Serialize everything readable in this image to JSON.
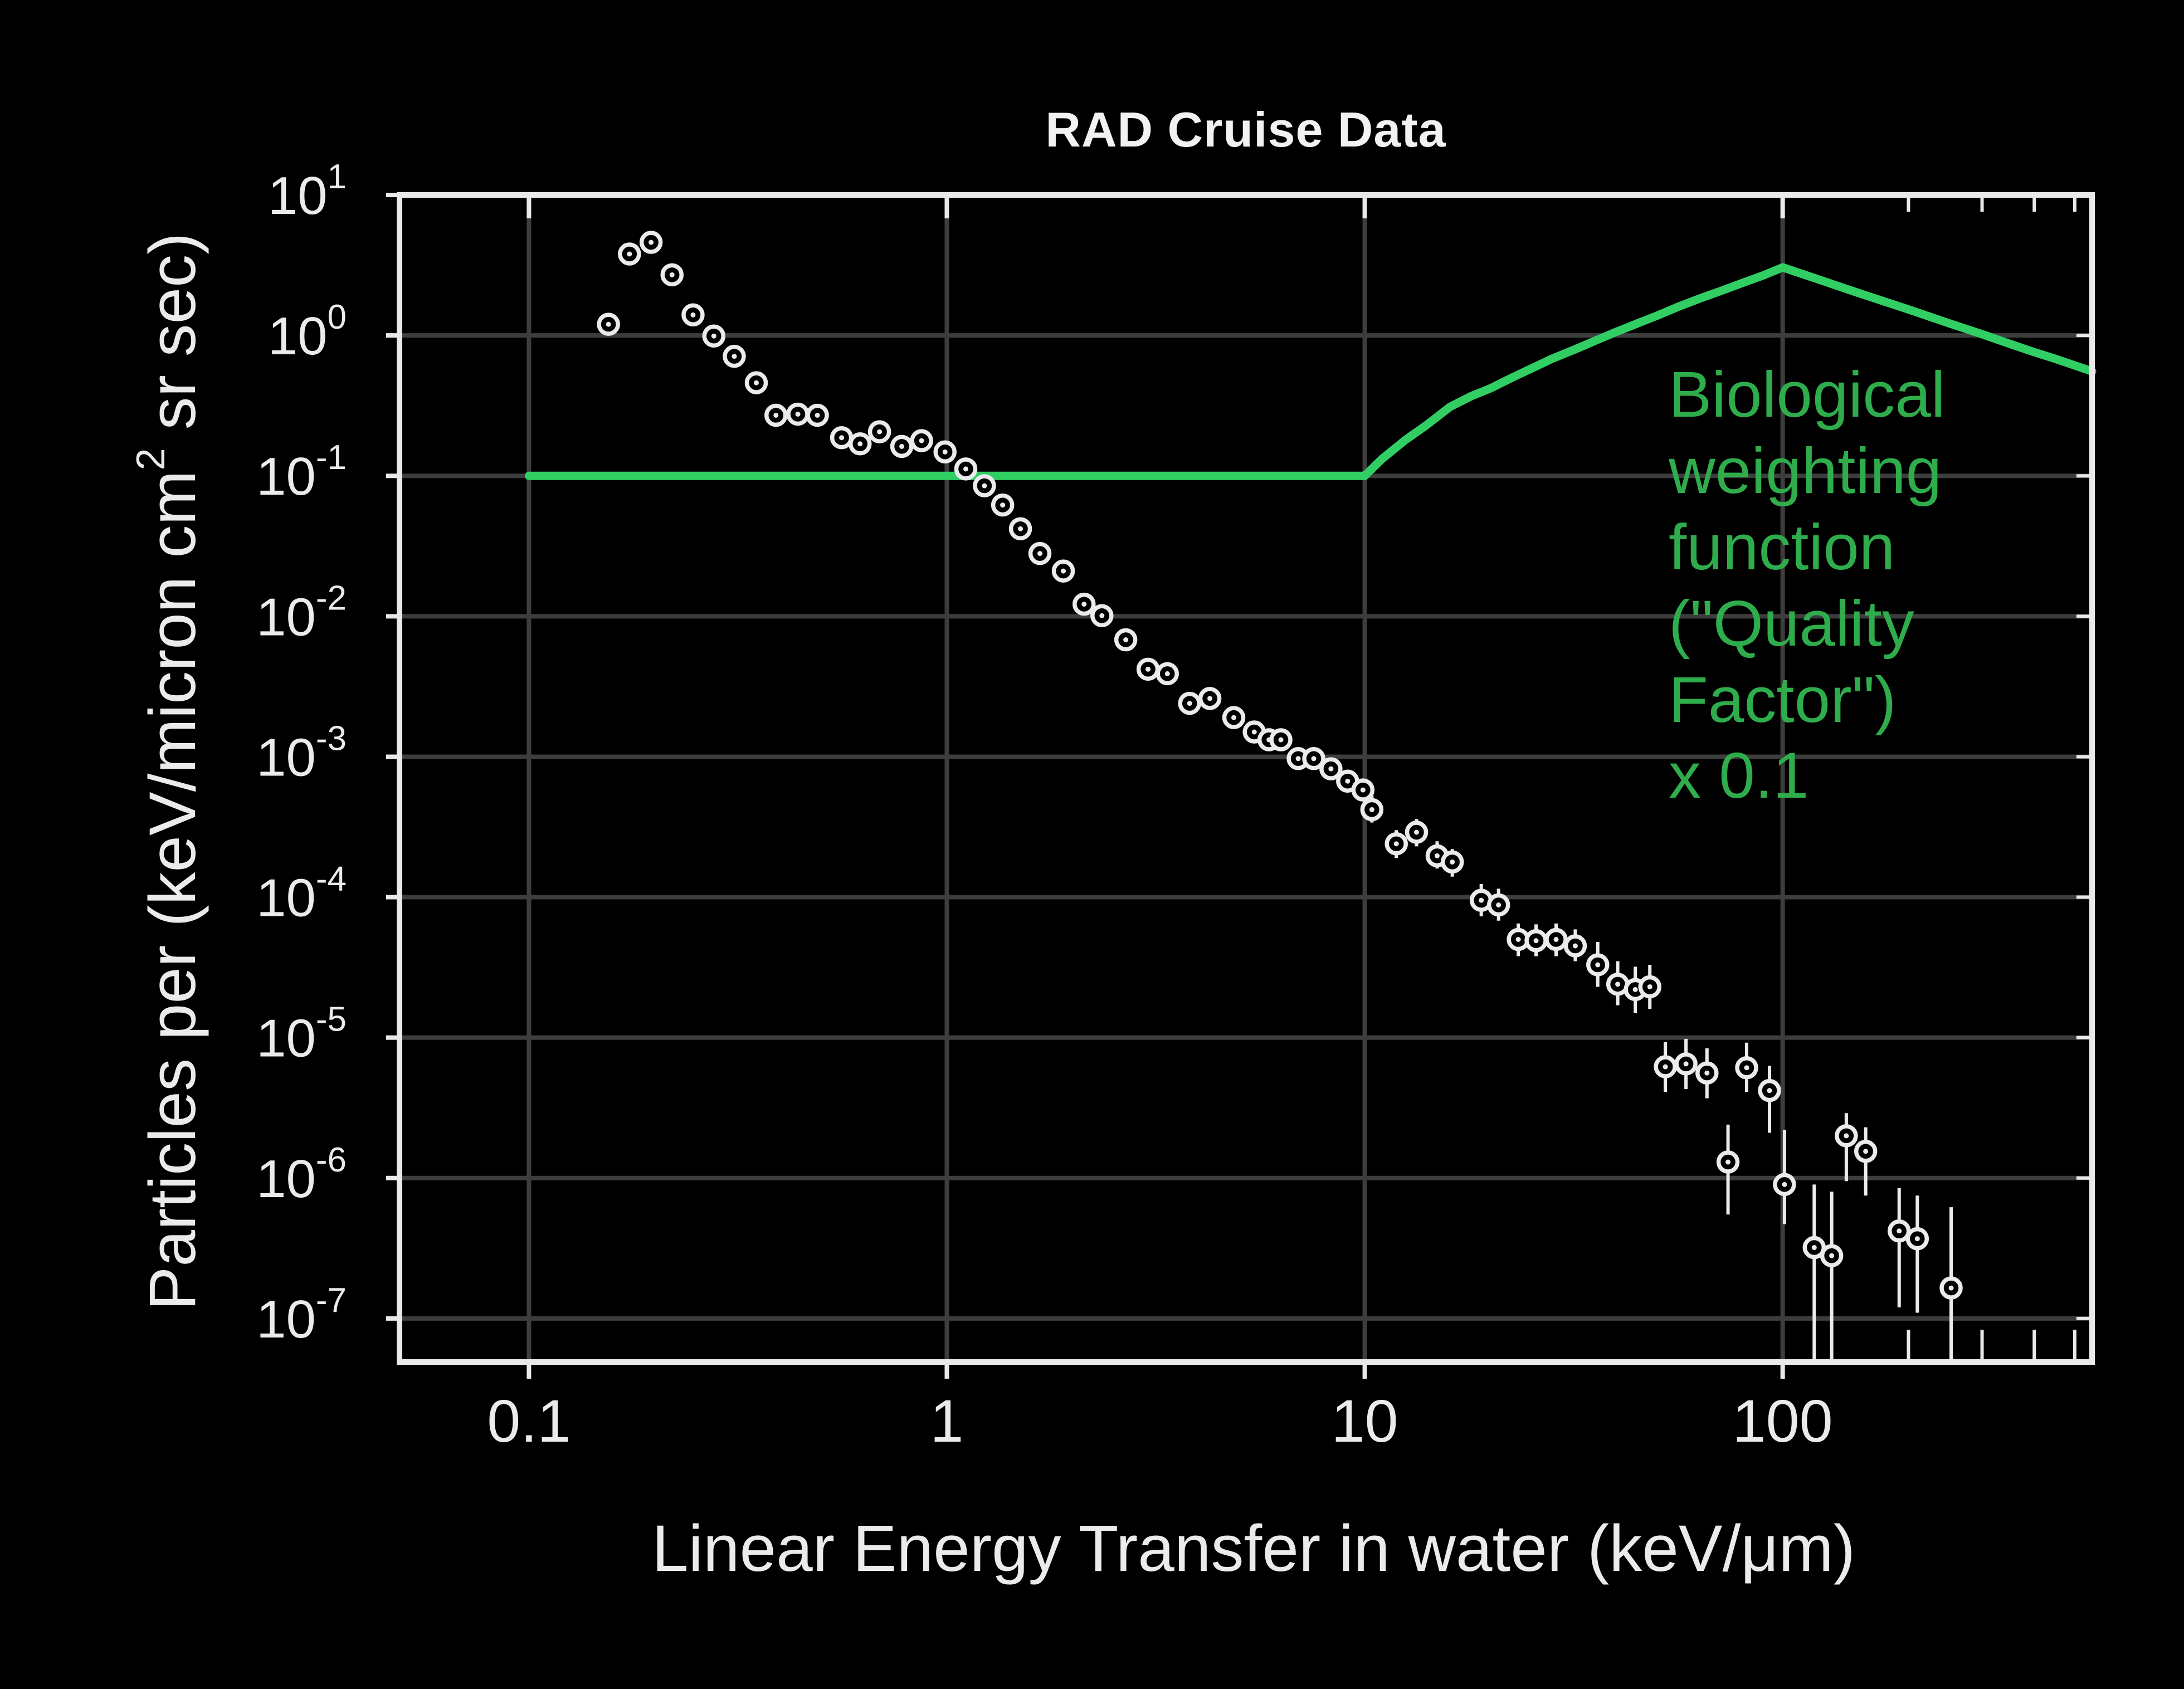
{
  "colors": {
    "background": "#000000",
    "axis": "#e9e9e9",
    "grid": "#3d3d3d",
    "marker": "#ebebeb",
    "curve_green": "#31cf63",
    "annotation_green": "#2fad4c",
    "text": "#ebebeb"
  },
  "chart_data": {
    "type": "scatter",
    "title": "RAD Cruise Data",
    "xlabel": "Linear Energy Transfer in water (keV/μm)",
    "ylabel_pre": "Particles per (keV/micron cm",
    "ylabel_sup": "2",
    "ylabel_post": " sr sec)",
    "x_scale": "log",
    "y_scale": "log",
    "xlim": [
      0.049,
      550
    ],
    "ylim": [
      4.9e-08,
      10
    ],
    "grid": true,
    "legend": "none",
    "x_ticks": [
      {
        "v": 0.1,
        "label": "0.1"
      },
      {
        "v": 1,
        "label": "1"
      },
      {
        "v": 10,
        "label": "10"
      },
      {
        "v": 100,
        "label": "100"
      }
    ],
    "x_minor_ticks": [
      200,
      300,
      400,
      500
    ],
    "y_ticks": [
      {
        "base": "10",
        "exp": "1"
      },
      {
        "base": "10",
        "exp": "0"
      },
      {
        "base": "10",
        "exp": "-1"
      },
      {
        "base": "10",
        "exp": "-2"
      },
      {
        "base": "10",
        "exp": "-3"
      },
      {
        "base": "10",
        "exp": "-4"
      },
      {
        "base": "10",
        "exp": "-5"
      },
      {
        "base": "10",
        "exp": "-6"
      },
      {
        "base": "10",
        "exp": "-7"
      }
    ],
    "annotation": {
      "text": "Biological\nweighting\nfunction\n(\"Quality\nFactor\")\n x 0.1"
    },
    "series": [
      {
        "id": "let-flux-spectrum",
        "marker": "open-circle-dot",
        "points": [
          [
            0.155,
            1.2,
            null,
            null
          ],
          [
            0.174,
            3.8,
            null,
            null
          ],
          [
            0.196,
            4.6,
            null,
            null
          ],
          [
            0.22,
            2.7,
            null,
            null
          ],
          [
            0.247,
            1.4,
            null,
            null
          ],
          [
            0.277,
            0.99,
            null,
            null
          ],
          [
            0.31,
            0.71,
            null,
            null
          ],
          [
            0.35,
            0.46,
            null,
            null
          ],
          [
            0.39,
            0.27,
            null,
            null
          ],
          [
            0.44,
            0.275,
            null,
            null
          ],
          [
            0.49,
            0.27,
            null,
            null
          ],
          [
            0.56,
            0.187,
            null,
            null
          ],
          [
            0.62,
            0.169,
            null,
            null
          ],
          [
            0.69,
            0.206,
            null,
            null
          ],
          [
            0.78,
            0.162,
            null,
            null
          ],
          [
            0.87,
            0.178,
            null,
            null
          ],
          [
            0.99,
            0.148,
            null,
            null
          ],
          [
            1.11,
            0.112,
            null,
            null
          ],
          [
            1.23,
            0.085,
            null,
            null
          ],
          [
            1.36,
            0.062,
            null,
            null
          ],
          [
            1.5,
            0.042,
            null,
            null
          ],
          [
            1.67,
            0.028,
            null,
            null
          ],
          [
            1.9,
            0.021,
            null,
            null
          ],
          [
            2.13,
            0.0122,
            null,
            null
          ],
          [
            2.35,
            0.0101,
            null,
            null
          ],
          [
            2.68,
            0.0068,
            null,
            null
          ],
          [
            3.03,
            0.0042,
            null,
            null
          ],
          [
            3.37,
            0.0039,
            null,
            null
          ],
          [
            3.81,
            0.0024,
            null,
            null
          ],
          [
            4.26,
            0.0026,
            null,
            null
          ],
          [
            4.86,
            0.0019,
            null,
            null
          ],
          [
            5.44,
            0.0015,
            null,
            null
          ],
          [
            5.9,
            0.00132,
            null,
            null
          ],
          [
            6.3,
            0.00132,
            null,
            null
          ],
          [
            6.93,
            0.00097,
            null,
            null
          ],
          [
            7.55,
            0.00097,
            null,
            null
          ],
          [
            8.3,
            0.00082,
            null,
            null
          ],
          [
            9.1,
            0.00067,
            null,
            null
          ],
          [
            9.9,
            0.00058,
            null,
            null
          ],
          [
            10.4,
            0.00042,
            0.00034,
            0.00053
          ],
          [
            11.9,
            0.00024,
            0.00019,
            0.0003
          ],
          [
            13.3,
            0.00029,
            0.00023,
            0.00036
          ],
          [
            14.9,
            0.000197,
            0.00016,
            0.00025
          ],
          [
            16.2,
            0.000178,
            0.00014,
            0.00022
          ],
          [
            19.0,
            9.5e-05,
            7.3e-05,
            0.000124
          ],
          [
            20.9,
            8.8e-05,
            6.8e-05,
            0.000115
          ],
          [
            23.3,
            5e-05,
            3.8e-05,
            6.5e-05
          ],
          [
            25.7,
            4.9e-05,
            3.8e-05,
            6.4e-05
          ],
          [
            28.7,
            5e-05,
            3.8e-05,
            6.5e-05
          ],
          [
            31.9,
            4.5e-05,
            3.5e-05,
            5.9e-05
          ],
          [
            36.1,
            3.3e-05,
            2.3e-05,
            4.8e-05
          ],
          [
            40.3,
            2.4e-05,
            1.7e-05,
            3.5e-05
          ],
          [
            44.4,
            2.2e-05,
            1.5e-05,
            3.2e-05
          ],
          [
            48.1,
            2.3e-05,
            1.6e-05,
            3.3e-05
          ],
          [
            52.4,
            6.2e-06,
            4.1e-06,
            9.3e-06
          ],
          [
            58.7,
            6.5e-06,
            4.3e-06,
            9.8e-06
          ],
          [
            65.9,
            5.6e-06,
            3.7e-06,
            8.4e-06
          ],
          [
            74,
            1.3e-06,
            5.5e-07,
            2.4e-06
          ],
          [
            82,
            6.1e-06,
            4.1e-06,
            9.2e-06
          ],
          [
            93,
            4.2e-06,
            2.1e-06,
            6.3e-06
          ],
          [
            101,
            9e-07,
            4.7e-07,
            2.2e-06
          ],
          [
            119,
            3.2e-07,
            5e-08,
            9e-07
          ],
          [
            131,
            2.8e-07,
            5e-08,
            8e-07
          ],
          [
            142,
            2e-06,
            9.5e-07,
            2.9e-06
          ],
          [
            158,
            1.55e-06,
            7.5e-07,
            2.3e-06
          ],
          [
            190,
            4.2e-07,
            1.2e-07,
            8.5e-07
          ],
          [
            210,
            3.7e-07,
            1.1e-07,
            7.5e-07
          ],
          [
            253,
            1.65e-07,
            4.8e-08,
            6.2e-07
          ]
        ]
      },
      {
        "id": "biological-weighting-function-x0.1",
        "marker": "line",
        "points": [
          [
            0.1,
            0.1
          ],
          [
            10,
            0.1
          ],
          [
            11,
            0.132
          ],
          [
            12.5,
            0.18
          ],
          [
            14,
            0.228
          ],
          [
            16,
            0.31
          ],
          [
            18,
            0.37
          ],
          [
            20,
            0.42
          ],
          [
            22.5,
            0.5
          ],
          [
            25,
            0.58
          ],
          [
            28,
            0.68
          ],
          [
            32,
            0.8
          ],
          [
            36,
            0.93
          ],
          [
            40,
            1.06
          ],
          [
            45,
            1.22
          ],
          [
            50,
            1.38
          ],
          [
            56,
            1.59
          ],
          [
            63,
            1.82
          ],
          [
            71,
            2.07
          ],
          [
            80,
            2.36
          ],
          [
            90,
            2.68
          ],
          [
            100,
            3.05
          ],
          [
            120,
            2.54
          ],
          [
            150,
            2.03
          ],
          [
            200,
            1.53
          ],
          [
            250,
            1.22
          ],
          [
            300,
            1.02
          ],
          [
            350,
            0.87
          ],
          [
            400,
            0.76
          ],
          [
            450,
            0.68
          ],
          [
            550,
            0.555
          ]
        ]
      }
    ]
  }
}
